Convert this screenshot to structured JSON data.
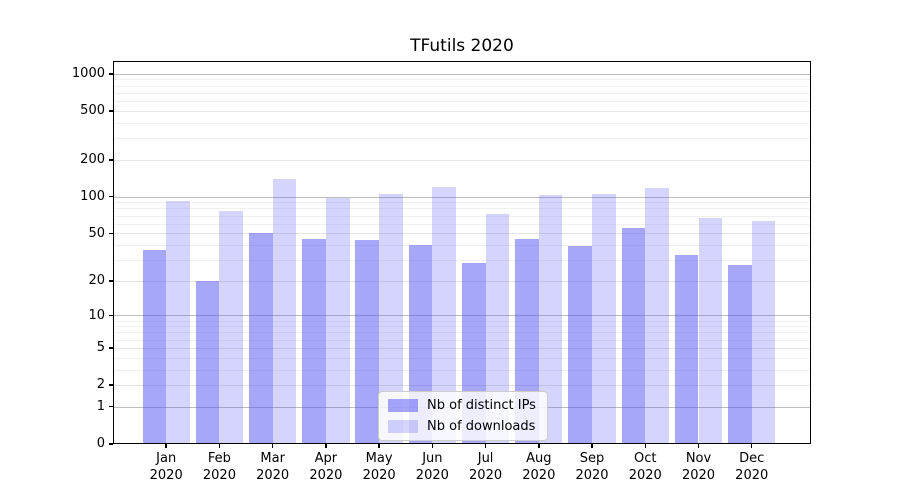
{
  "chart_data": {
    "type": "bar",
    "title": "TFutils 2020",
    "categories": [
      "Jan",
      "Feb",
      "Mar",
      "Apr",
      "May",
      "Jun",
      "Jul",
      "Aug",
      "Sep",
      "Oct",
      "Nov",
      "Dec"
    ],
    "year_label": "2020",
    "series": [
      {
        "name": "Nb of distinct IPs",
        "values": [
          36,
          20,
          50,
          45,
          44,
          40,
          28,
          45,
          39,
          55,
          33,
          27
        ],
        "color": "rgba(87,87,245,0.52)"
      },
      {
        "name": "Nb of downloads",
        "values": [
          92,
          76,
          140,
          97,
          106,
          119,
          72,
          103,
          105,
          118,
          67,
          63
        ],
        "color": "rgba(87,87,245,0.26)"
      }
    ],
    "xlabel": "",
    "ylabel": "",
    "yscale": "log1p",
    "ylim": [
      0,
      1270
    ],
    "ytick_values": [
      1000,
      500,
      200,
      100,
      50,
      20,
      10,
      5,
      2,
      1,
      0
    ],
    "ytick_labels": [
      "1000",
      "500",
      "200",
      "100",
      "50",
      "20",
      "10",
      "5",
      "2",
      "1",
      "0"
    ],
    "grid": true,
    "grid_lines": {
      "major": [
        1,
        10,
        100,
        1000
      ],
      "mid": [
        2,
        5,
        20,
        50,
        200,
        500
      ],
      "minor": [
        3,
        4,
        6,
        7,
        8,
        9,
        30,
        40,
        60,
        70,
        80,
        90,
        300,
        400,
        600,
        700,
        800,
        900
      ]
    },
    "legend_position": "lower center"
  },
  "colors": {
    "spine": "#000000",
    "grid_major": "#bdbdbd",
    "grid_mid": "#e4e4e4",
    "grid_minor": "#f0f0f0",
    "legend_border": "#cccccc",
    "text": "#000000"
  }
}
